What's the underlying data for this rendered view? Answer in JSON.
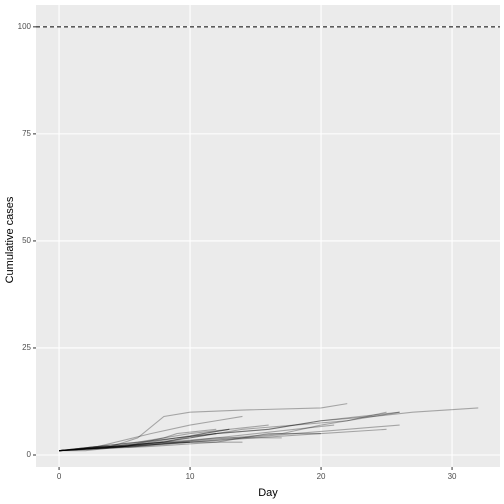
{
  "chart_data": {
    "type": "line",
    "x_label": "Day",
    "y_label": "Cumulative cases",
    "xlim": [
      -1.76,
      33.66
    ],
    "ylim": [
      -2.8,
      105.1
    ],
    "xticks": [
      0,
      10,
      20,
      30
    ],
    "yticks": [
      0,
      25,
      50,
      75,
      100
    ],
    "grid": true,
    "color": "#000000",
    "line_alpha": 0.3,
    "hline": 100,
    "series": [
      {
        "x": [
          0,
          4,
          6,
          8,
          10,
          14,
          20,
          22
        ],
        "values": [
          1,
          2,
          4,
          9,
          10,
          10.5,
          11,
          12
        ]
      },
      {
        "x": [
          0,
          5,
          9,
          12,
          16,
          20,
          24,
          27,
          32
        ],
        "values": [
          1,
          2,
          4,
          5,
          6,
          8,
          9,
          10,
          11
        ]
      },
      {
        "x": [
          0,
          4,
          8,
          12,
          16,
          20,
          23,
          26
        ],
        "values": [
          1,
          2,
          3,
          5,
          6,
          8,
          9,
          10
        ]
      },
      {
        "x": [
          0,
          5,
          10,
          14,
          18,
          22,
          25
        ],
        "values": [
          1,
          2,
          4,
          6,
          7,
          8,
          10
        ]
      },
      {
        "x": [
          0,
          3,
          7,
          10,
          12,
          14
        ],
        "values": [
          1,
          2,
          5,
          7,
          8,
          9
        ]
      },
      {
        "x": [
          0,
          6,
          10,
          14,
          18,
          22,
          26
        ],
        "values": [
          1,
          2,
          3,
          4,
          5,
          6,
          7
        ]
      },
      {
        "x": [
          0,
          4,
          8,
          11,
          13
        ],
        "values": [
          1,
          2,
          3,
          5,
          6
        ]
      },
      {
        "x": [
          0,
          5,
          10,
          15,
          20,
          25
        ],
        "values": [
          1,
          2,
          3,
          4,
          5,
          6
        ]
      },
      {
        "x": [
          0,
          3,
          6,
          9,
          12
        ],
        "values": [
          1,
          2,
          3,
          4,
          5
        ]
      },
      {
        "x": [
          0,
          4,
          8,
          12,
          17
        ],
        "values": [
          1,
          2,
          3,
          4,
          4
        ]
      },
      {
        "x": [
          0,
          5,
          10,
          14
        ],
        "values": [
          1,
          2,
          3,
          3
        ]
      },
      {
        "x": [
          0,
          6,
          12,
          18,
          21
        ],
        "values": [
          1,
          2,
          4,
          6,
          7
        ]
      },
      {
        "x": [
          0,
          2,
          5,
          8,
          10
        ],
        "values": [
          1,
          1,
          2,
          3,
          3
        ]
      },
      {
        "x": [
          0,
          4,
          9,
          13,
          16
        ],
        "values": [
          1,
          2,
          4,
          6,
          7
        ]
      },
      {
        "x": [
          0,
          3,
          6,
          10,
          13
        ],
        "values": [
          1,
          2,
          3,
          5,
          6
        ]
      },
      {
        "x": [
          0,
          7,
          12,
          16,
          20
        ],
        "values": [
          1,
          2,
          3,
          5,
          5
        ]
      },
      {
        "x": [
          0,
          3,
          5,
          8,
          9,
          12
        ],
        "values": [
          1,
          2,
          2,
          4,
          5,
          6
        ]
      },
      {
        "x": [
          0,
          5,
          9,
          13,
          17,
          20,
          22,
          24,
          26
        ],
        "values": [
          1,
          2,
          3,
          4,
          5,
          7,
          8,
          9,
          10
        ]
      }
    ]
  }
}
